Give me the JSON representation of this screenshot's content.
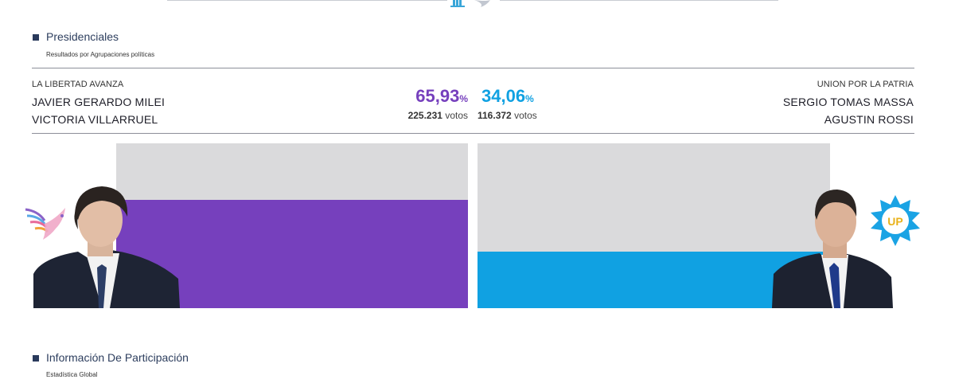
{
  "section_presidential": {
    "title": "Presidenciales",
    "subtitle": "Resultados por Agrupaciones políticas"
  },
  "candidates": [
    {
      "party": "LA LIBERTAD AVANZA",
      "president": "JAVIER GERARDO MILEI",
      "vice": "VICTORIA VILLARRUEL",
      "percent": "65,93",
      "percent_value": 65.93,
      "percent_sign": "%",
      "votes": "225.231",
      "votes_label": "votos",
      "color": "#7640bd"
    },
    {
      "party": "UNION POR LA PATRIA",
      "president": "SERGIO TOMAS MASSA",
      "vice": "AGUSTIN ROSSI",
      "percent": "34,06",
      "percent_value": 34.06,
      "percent_sign": "%",
      "votes": "116.372",
      "votes_label": "votos",
      "color": "#10a1e2",
      "logo_text": "UP"
    }
  ],
  "section_participation": {
    "title": "Información De Participación",
    "subtitle": "Estadística Global"
  },
  "icons": {
    "header_emblem": "argentina-emblem-icon",
    "lla_logo": "dove-logo-icon",
    "up_logo": "union-por-la-patria-sun-logo-icon"
  }
}
